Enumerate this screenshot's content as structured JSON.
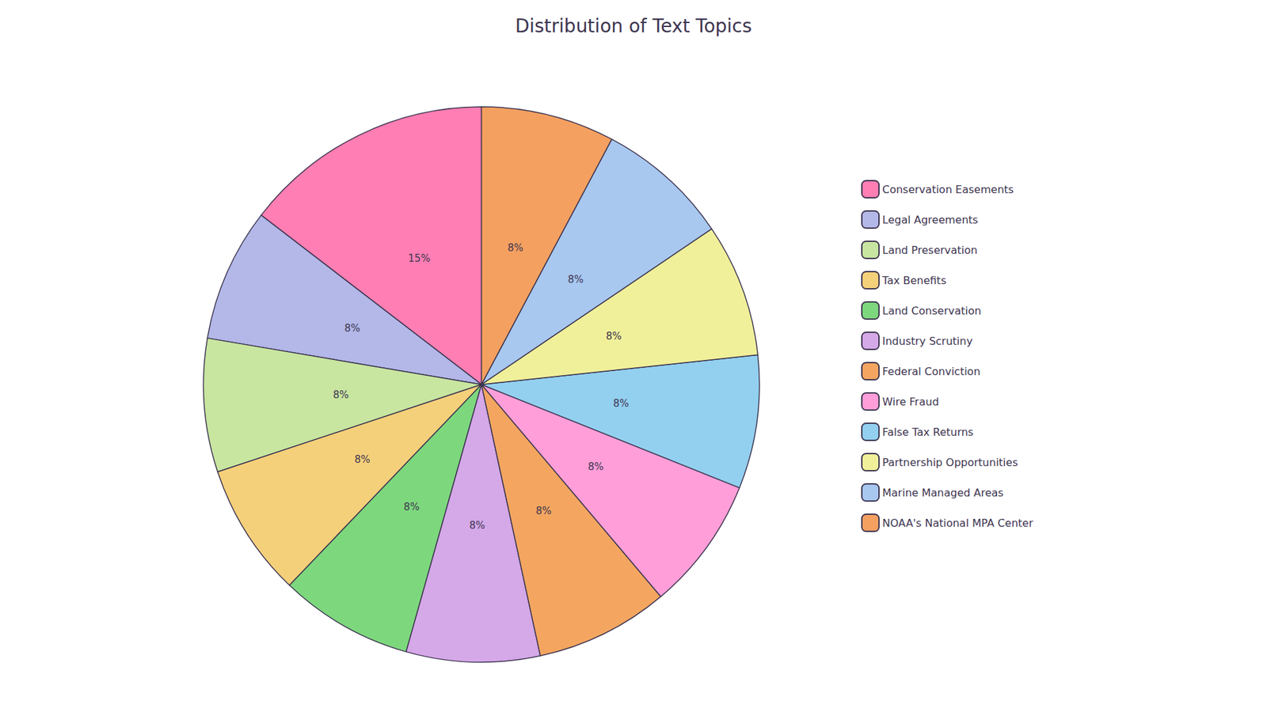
{
  "chart_data": {
    "type": "pie",
    "title": "Distribution of Text Topics",
    "categories": [
      "Conservation Easements",
      "Legal Agreements",
      "Land Preservation",
      "Tax Benefits",
      "Land Conservation",
      "Industry Scrutiny",
      "Federal Conviction",
      "Wire Fraud",
      "False Tax Returns",
      "Partnership Opportunities",
      "Marine Managed Areas",
      "NOAA's National MPA Center"
    ],
    "values": [
      15,
      8,
      8,
      8,
      8,
      8,
      8,
      8,
      8,
      8,
      8,
      8
    ],
    "value_labels": [
      "15%",
      "8%",
      "8%",
      "8%",
      "8%",
      "8%",
      "8%",
      "8%",
      "8%",
      "8%",
      "8%",
      "8%"
    ],
    "colors": [
      "#FF7EB3",
      "#B3B8E8",
      "#C8E6A0",
      "#F5D07A",
      "#7DD87D",
      "#D5A8E8",
      "#F4A660",
      "#FF9ED8",
      "#93D0F0",
      "#F0F09A",
      "#A8C8F0",
      "#F4A060"
    ],
    "legend": "right",
    "data_labels": true
  }
}
